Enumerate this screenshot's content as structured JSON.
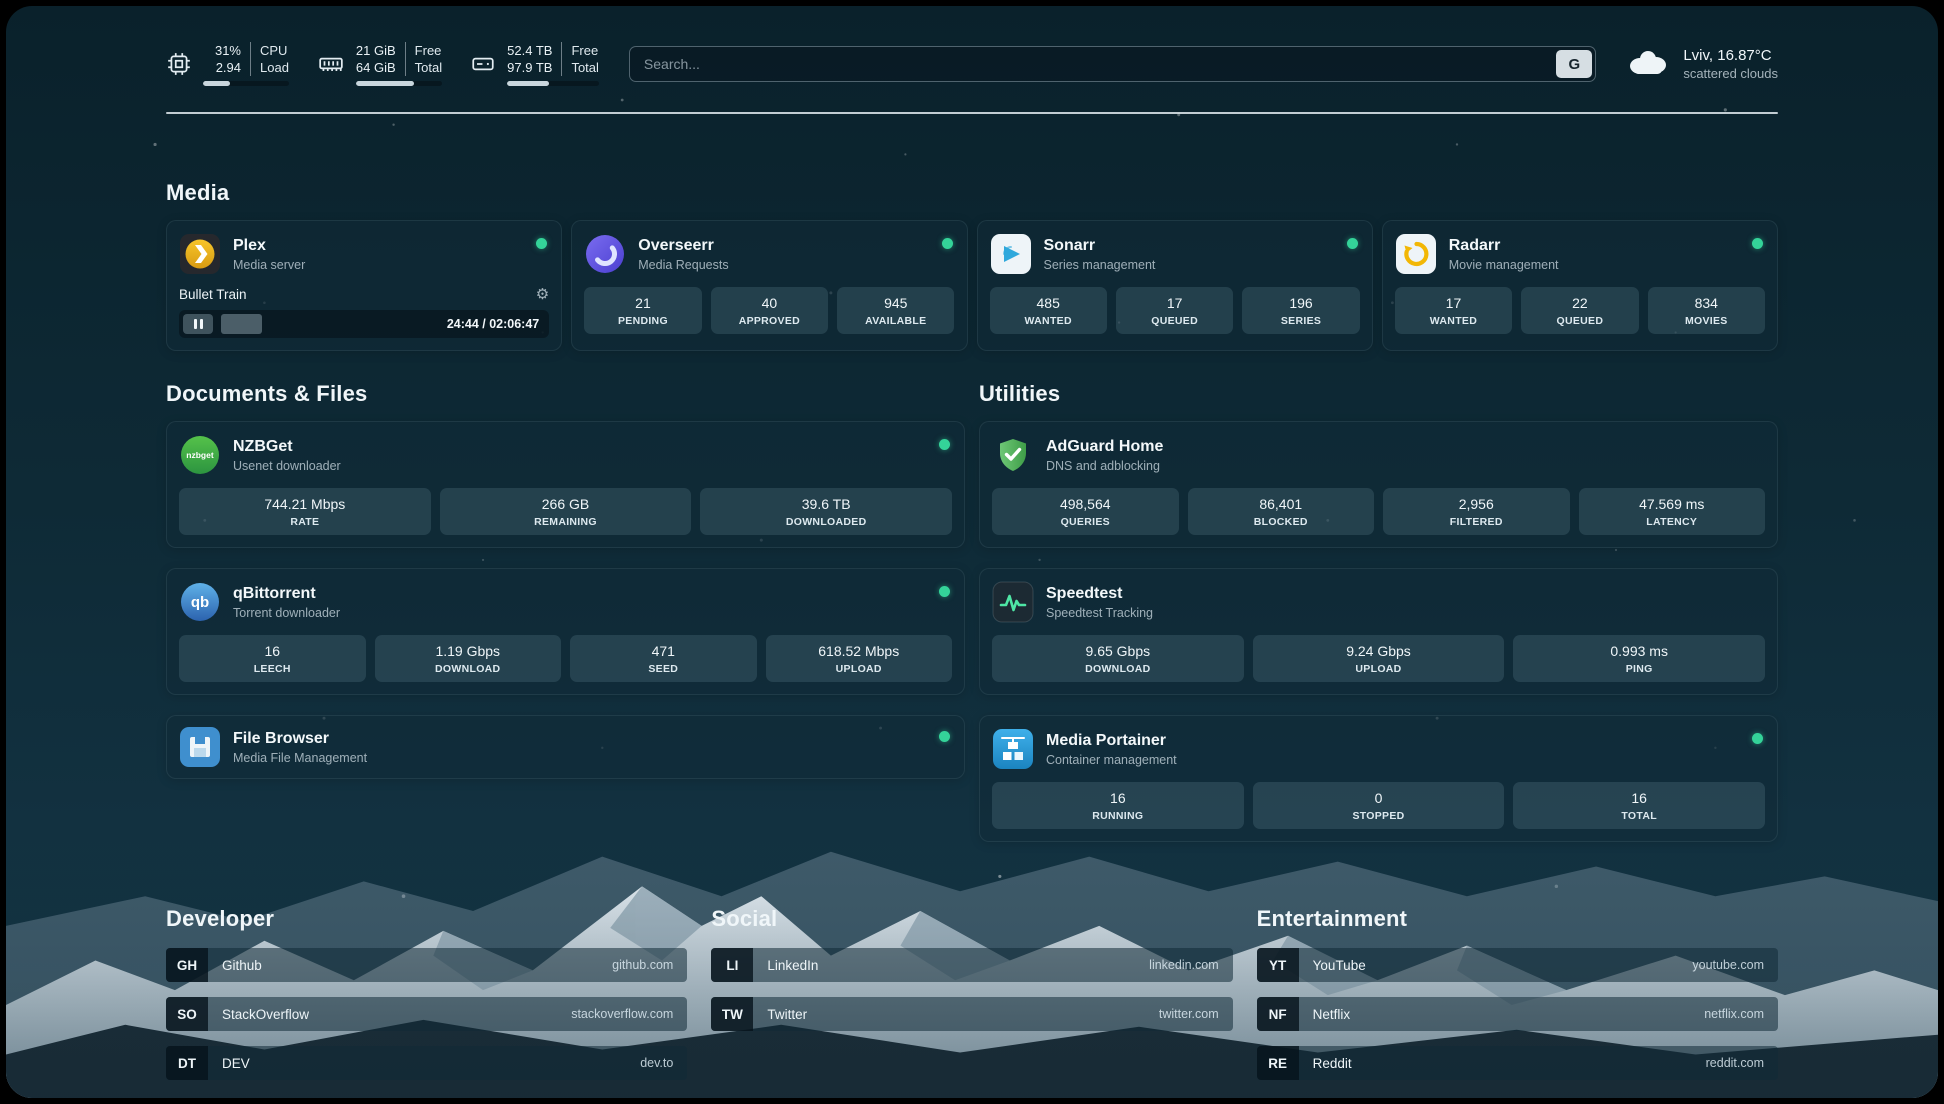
{
  "colors": {
    "status_online": "#34d399",
    "bar_fill": "#c9d6dd",
    "plex_amber": "#e5a00d",
    "overseerr_purple": "#6158d6",
    "sonarr_blue": "#2fa8dc",
    "radarr_amber": "#f2b705",
    "nzbget_green": "#3fae49",
    "qbittorrent_blue": "#3a76c4",
    "filebrowser_blue": "#3f8fce",
    "adguard_green": "#4caf50",
    "speedtest_green": "#4ee6a5",
    "portainer_blue": "#2b9fdc"
  },
  "icons": {
    "gear": "⚙"
  },
  "header": {
    "cpu": {
      "value1": "31%",
      "label1": "CPU",
      "value2": "2.94",
      "label2": "Load",
      "bar_percent": 31
    },
    "ram": {
      "value1": "21 GiB",
      "label1": "Free",
      "value2": "64 GiB",
      "label2": "Total",
      "bar_percent": 67
    },
    "disk": {
      "value1": "52.4 TB",
      "label1": "Free",
      "value2": "97.9 TB",
      "label2": "Total",
      "bar_percent": 46
    },
    "search": {
      "placeholder": "Search...",
      "engine_button": "G"
    },
    "weather": {
      "location": "Lviv, 16.87°C",
      "condition": "scattered clouds"
    }
  },
  "sections": {
    "media": {
      "title": "Media"
    },
    "documents": {
      "title": "Documents & Files"
    },
    "utilities": {
      "title": "Utilities"
    }
  },
  "apps": {
    "plex": {
      "name": "Plex",
      "subtitle": "Media server",
      "now_playing": "Bullet Train",
      "time": "24:44 / 02:06:47",
      "progress_percent": 19
    },
    "overseerr": {
      "name": "Overseerr",
      "subtitle": "Media Requests",
      "stats": [
        {
          "value": "21",
          "label": "PENDING"
        },
        {
          "value": "40",
          "label": "APPROVED"
        },
        {
          "value": "945",
          "label": "AVAILABLE"
        }
      ]
    },
    "sonarr": {
      "name": "Sonarr",
      "subtitle": "Series management",
      "stats": [
        {
          "value": "485",
          "label": "WANTED"
        },
        {
          "value": "17",
          "label": "QUEUED"
        },
        {
          "value": "196",
          "label": "SERIES"
        }
      ]
    },
    "radarr": {
      "name": "Radarr",
      "subtitle": "Movie management",
      "stats": [
        {
          "value": "17",
          "label": "WANTED"
        },
        {
          "value": "22",
          "label": "QUEUED"
        },
        {
          "value": "834",
          "label": "MOVIES"
        }
      ]
    },
    "nzbget": {
      "name": "NZBGet",
      "subtitle": "Usenet downloader",
      "stats": [
        {
          "value": "744.21 Mbps",
          "label": "RATE"
        },
        {
          "value": "266 GB",
          "label": "REMAINING"
        },
        {
          "value": "39.6 TB",
          "label": "DOWNLOADED"
        }
      ]
    },
    "qbittorrent": {
      "name": "qBittorrent",
      "subtitle": "Torrent downloader",
      "stats": [
        {
          "value": "16",
          "label": "LEECH"
        },
        {
          "value": "1.19 Gbps",
          "label": "DOWNLOAD"
        },
        {
          "value": "471",
          "label": "SEED"
        },
        {
          "value": "618.52 Mbps",
          "label": "UPLOAD"
        }
      ]
    },
    "filebrowser": {
      "name": "File Browser",
      "subtitle": "Media File Management"
    },
    "adguard": {
      "name": "AdGuard Home",
      "subtitle": "DNS and adblocking",
      "stats": [
        {
          "value": "498,564",
          "label": "QUERIES"
        },
        {
          "value": "86,401",
          "label": "BLOCKED"
        },
        {
          "value": "2,956",
          "label": "FILTERED"
        },
        {
          "value": "47.569 ms",
          "label": "LATENCY"
        }
      ]
    },
    "speedtest": {
      "name": "Speedtest",
      "subtitle": "Speedtest Tracking",
      "stats": [
        {
          "value": "9.65 Gbps",
          "label": "DOWNLOAD"
        },
        {
          "value": "9.24 Gbps",
          "label": "UPLOAD"
        },
        {
          "value": "0.993 ms",
          "label": "PING"
        }
      ]
    },
    "portainer": {
      "name": "Media Portainer",
      "subtitle": "Container management",
      "stats": [
        {
          "value": "16",
          "label": "RUNNING"
        },
        {
          "value": "0",
          "label": "STOPPED"
        },
        {
          "value": "16",
          "label": "TOTAL"
        }
      ]
    }
  },
  "bookmarks": [
    {
      "title": "Developer",
      "items": [
        {
          "abbr": "GH",
          "name": "Github",
          "url": "github.com"
        },
        {
          "abbr": "SO",
          "name": "StackOverflow",
          "url": "stackoverflow.com"
        },
        {
          "abbr": "DT",
          "name": "DEV",
          "url": "dev.to"
        }
      ]
    },
    {
      "title": "Social",
      "items": [
        {
          "abbr": "LI",
          "name": "LinkedIn",
          "url": "linkedin.com"
        },
        {
          "abbr": "TW",
          "name": "Twitter",
          "url": "twitter.com"
        }
      ]
    },
    {
      "title": "Entertainment",
      "items": [
        {
          "abbr": "YT",
          "name": "YouTube",
          "url": "youtube.com"
        },
        {
          "abbr": "NF",
          "name": "Netflix",
          "url": "netflix.com"
        },
        {
          "abbr": "RE",
          "name": "Reddit",
          "url": "reddit.com"
        }
      ]
    }
  ]
}
